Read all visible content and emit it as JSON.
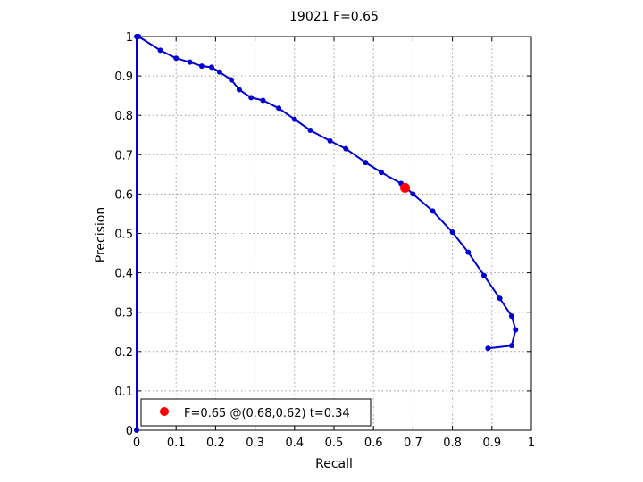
{
  "chart_data": {
    "type": "line",
    "title": "19021 F=0.65",
    "xlabel": "Recall",
    "ylabel": "Precision",
    "xlim": [
      0,
      1
    ],
    "ylim": [
      0,
      1
    ],
    "xticks": [
      "0",
      "0.1",
      "0.2",
      "0.3",
      "0.4",
      "0.5",
      "0.6",
      "0.7",
      "0.8",
      "0.9",
      "1"
    ],
    "yticks": [
      "0",
      "0.1",
      "0.2",
      "0.3",
      "0.4",
      "0.5",
      "0.6",
      "0.7",
      "0.8",
      "0.9",
      "1"
    ],
    "grid": true,
    "legend_position": "bottom-left",
    "series": [
      {
        "color": "#0000d0",
        "x": [
          0.0,
          0.0,
          0.005,
          0.06,
          0.1,
          0.135,
          0.165,
          0.19,
          0.21,
          0.24,
          0.26,
          0.29,
          0.32,
          0.36,
          0.4,
          0.44,
          0.49,
          0.53,
          0.58,
          0.62,
          0.67,
          0.7,
          0.75,
          0.8,
          0.84,
          0.88,
          0.92,
          0.95,
          0.96,
          0.95,
          0.89
        ],
        "y": [
          0.0,
          1.0,
          1.0,
          0.965,
          0.945,
          0.935,
          0.925,
          0.922,
          0.91,
          0.89,
          0.865,
          0.845,
          0.838,
          0.818,
          0.79,
          0.762,
          0.735,
          0.715,
          0.68,
          0.655,
          0.627,
          0.6,
          0.557,
          0.503,
          0.452,
          0.393,
          0.335,
          0.29,
          0.255,
          0.215,
          0.208
        ]
      }
    ],
    "highlight": {
      "x": 0.68,
      "y": 0.616,
      "color": "#ff0000",
      "label": "F=0.65 @(0.68,0.62) t=0.34"
    }
  }
}
